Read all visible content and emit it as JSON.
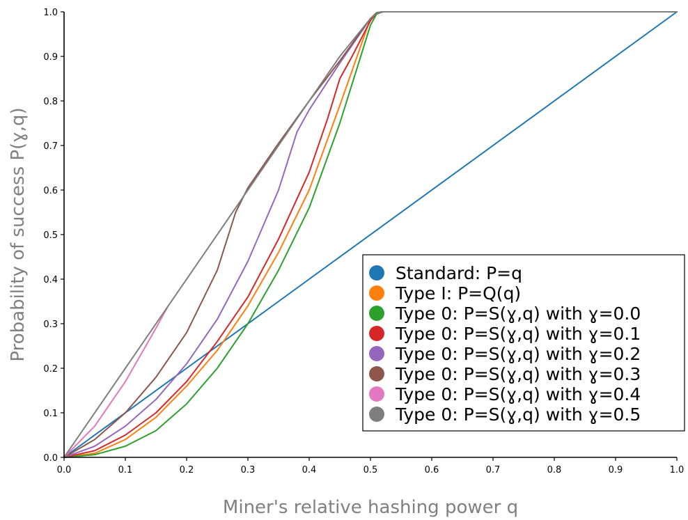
{
  "chart_data": {
    "type": "line",
    "title": "",
    "xlabel": "Miner's relative hashing power q",
    "ylabel": "Probability of success P(ɣ,q)",
    "xlim": [
      0.0,
      1.0
    ],
    "ylim": [
      0.0,
      1.0
    ],
    "xticks": [
      "0.0",
      "0.1",
      "0.2",
      "0.3",
      "0.4",
      "0.5",
      "0.6",
      "0.7",
      "0.8",
      "0.9",
      "1.0"
    ],
    "yticks": [
      "0.0",
      "0.1",
      "0.2",
      "0.3",
      "0.4",
      "0.5",
      "0.6",
      "0.7",
      "0.8",
      "0.9",
      "1.0"
    ],
    "grid": false,
    "legend_position": "lower-right",
    "series": [
      {
        "name": "Standard: P=q",
        "color": "#1f77b4",
        "x": [
          0.0,
          1.0
        ],
        "y": [
          0.0,
          1.0
        ]
      },
      {
        "name": "Type I: P=Q(q)",
        "color": "#ff7f0e",
        "x": [
          0.0,
          0.05,
          0.1,
          0.15,
          0.2,
          0.25,
          0.3,
          0.35,
          0.4,
          0.45,
          0.5,
          0.51,
          0.52,
          1.0
        ],
        "y": [
          0.0,
          0.009,
          0.04,
          0.09,
          0.16,
          0.24,
          0.34,
          0.46,
          0.6,
          0.79,
          0.985,
          0.998,
          1.0,
          1.0
        ]
      },
      {
        "name": "Type 0: P=S(ɣ,q) with ɣ=0.0",
        "color": "#2ca02c",
        "x": [
          0.0,
          0.05,
          0.1,
          0.15,
          0.2,
          0.25,
          0.3,
          0.35,
          0.4,
          0.45,
          0.5,
          0.51,
          0.52,
          1.0
        ],
        "y": [
          0.0,
          0.006,
          0.025,
          0.06,
          0.12,
          0.2,
          0.3,
          0.42,
          0.56,
          0.75,
          0.97,
          0.995,
          1.0,
          1.0
        ]
      },
      {
        "name": "Type 0: P=S(ɣ,q) with ɣ=0.1",
        "color": "#d62728",
        "x": [
          0.0,
          0.05,
          0.1,
          0.15,
          0.2,
          0.25,
          0.3,
          0.35,
          0.4,
          0.43,
          0.45,
          0.47,
          0.5,
          0.51,
          0.52,
          1.0
        ],
        "y": [
          0.0,
          0.015,
          0.05,
          0.1,
          0.17,
          0.26,
          0.36,
          0.49,
          0.64,
          0.76,
          0.85,
          0.9,
          0.98,
          0.998,
          1.0,
          1.0
        ]
      },
      {
        "name": "Type 0: P=S(ɣ,q) with ɣ=0.2",
        "color": "#9467bd",
        "x": [
          0.0,
          0.05,
          0.1,
          0.15,
          0.2,
          0.25,
          0.3,
          0.35,
          0.38,
          0.4,
          0.45,
          0.5,
          0.51,
          0.52,
          1.0
        ],
        "y": [
          0.0,
          0.025,
          0.07,
          0.13,
          0.21,
          0.31,
          0.44,
          0.6,
          0.73,
          0.78,
          0.885,
          0.985,
          0.998,
          1.0,
          1.0
        ]
      },
      {
        "name": "Type 0: P=S(ɣ,q) with ɣ=0.3",
        "color": "#8c564b",
        "x": [
          0.0,
          0.05,
          0.1,
          0.15,
          0.2,
          0.25,
          0.28,
          0.3,
          0.35,
          0.4,
          0.45,
          0.5,
          0.51,
          0.52,
          1.0
        ],
        "y": [
          0.0,
          0.04,
          0.1,
          0.18,
          0.28,
          0.42,
          0.55,
          0.605,
          0.705,
          0.8,
          0.89,
          0.985,
          0.998,
          1.0,
          1.0
        ]
      },
      {
        "name": "Type 0: P=S(ɣ,q) with ɣ=0.4",
        "color": "#e377c2",
        "x": [
          0.0,
          0.05,
          0.1,
          0.15,
          0.17
        ],
        "y": [
          0.0,
          0.07,
          0.17,
          0.29,
          0.34
        ]
      },
      {
        "name": "Type 0: P=S(ɣ,q) with ɣ=0.5",
        "color": "#7f7f7f",
        "x": [
          0.0,
          0.1,
          0.2,
          0.3,
          0.4,
          0.45,
          0.5,
          0.51,
          0.52,
          1.0
        ],
        "y": [
          0.0,
          0.2,
          0.4,
          0.6,
          0.8,
          0.9,
          0.985,
          0.998,
          1.0,
          1.0
        ]
      }
    ]
  }
}
